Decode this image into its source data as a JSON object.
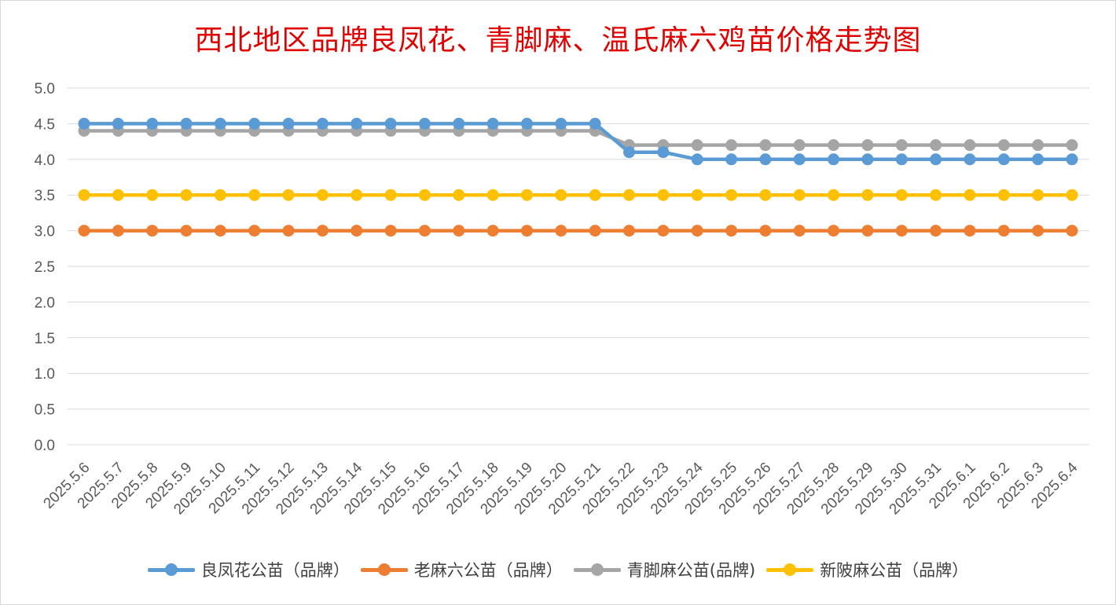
{
  "chart_data": {
    "type": "line",
    "title": "西北地区品牌良凤花、青脚麻、温氏麻六鸡苗价格走势图",
    "xlabel": "",
    "ylabel": "",
    "ylim": [
      0,
      5
    ],
    "yticks": [
      "0.0",
      "0.5",
      "1.0",
      "1.5",
      "2.0",
      "2.5",
      "3.0",
      "3.5",
      "4.0",
      "4.5",
      "5.0"
    ],
    "grid": true,
    "legend_position": "bottom",
    "categories": [
      "2025.5.6",
      "2025.5.7",
      "2025.5.8",
      "2025.5.9",
      "2025.5.10",
      "2025.5.11",
      "2025.5.12",
      "2025.5.13",
      "2025.5.14",
      "2025.5.15",
      "2025.5.16",
      "2025.5.17",
      "2025.5.18",
      "2025.5.19",
      "2025.5.20",
      "2025.5.21",
      "2025.5.22",
      "2025.5.23",
      "2025.5.24",
      "2025.5.25",
      "2025.5.26",
      "2025.5.27",
      "2025.5.28",
      "2025.5.29",
      "2025.5.30",
      "2025.5.31",
      "2025.6.1",
      "2025.6.2",
      "2025.6.3",
      "2025.6.4"
    ],
    "series": [
      {
        "name": "良凤花公苗（品牌）",
        "color": "#5b9bd5",
        "values": [
          4.5,
          4.5,
          4.5,
          4.5,
          4.5,
          4.5,
          4.5,
          4.5,
          4.5,
          4.5,
          4.5,
          4.5,
          4.5,
          4.5,
          4.5,
          4.5,
          4.1,
          4.1,
          4.0,
          4.0,
          4.0,
          4.0,
          4.0,
          4.0,
          4.0,
          4.0,
          4.0,
          4.0,
          4.0,
          4.0
        ]
      },
      {
        "name": "老麻六公苗（品牌）",
        "color": "#ed7d31",
        "values": [
          3.0,
          3.0,
          3.0,
          3.0,
          3.0,
          3.0,
          3.0,
          3.0,
          3.0,
          3.0,
          3.0,
          3.0,
          3.0,
          3.0,
          3.0,
          3.0,
          3.0,
          3.0,
          3.0,
          3.0,
          3.0,
          3.0,
          3.0,
          3.0,
          3.0,
          3.0,
          3.0,
          3.0,
          3.0,
          3.0
        ]
      },
      {
        "name": "青脚麻公苗(品牌)",
        "color": "#a5a5a5",
        "values": [
          4.4,
          4.4,
          4.4,
          4.4,
          4.4,
          4.4,
          4.4,
          4.4,
          4.4,
          4.4,
          4.4,
          4.4,
          4.4,
          4.4,
          4.4,
          4.4,
          4.2,
          4.2,
          4.2,
          4.2,
          4.2,
          4.2,
          4.2,
          4.2,
          4.2,
          4.2,
          4.2,
          4.2,
          4.2,
          4.2
        ]
      },
      {
        "name": "新陂麻公苗（品牌）",
        "color": "#ffc000",
        "values": [
          3.5,
          3.5,
          3.5,
          3.5,
          3.5,
          3.5,
          3.5,
          3.5,
          3.5,
          3.5,
          3.5,
          3.5,
          3.5,
          3.5,
          3.5,
          3.5,
          3.5,
          3.5,
          3.5,
          3.5,
          3.5,
          3.5,
          3.5,
          3.5,
          3.5,
          3.5,
          3.5,
          3.5,
          3.5,
          3.5
        ]
      }
    ]
  }
}
